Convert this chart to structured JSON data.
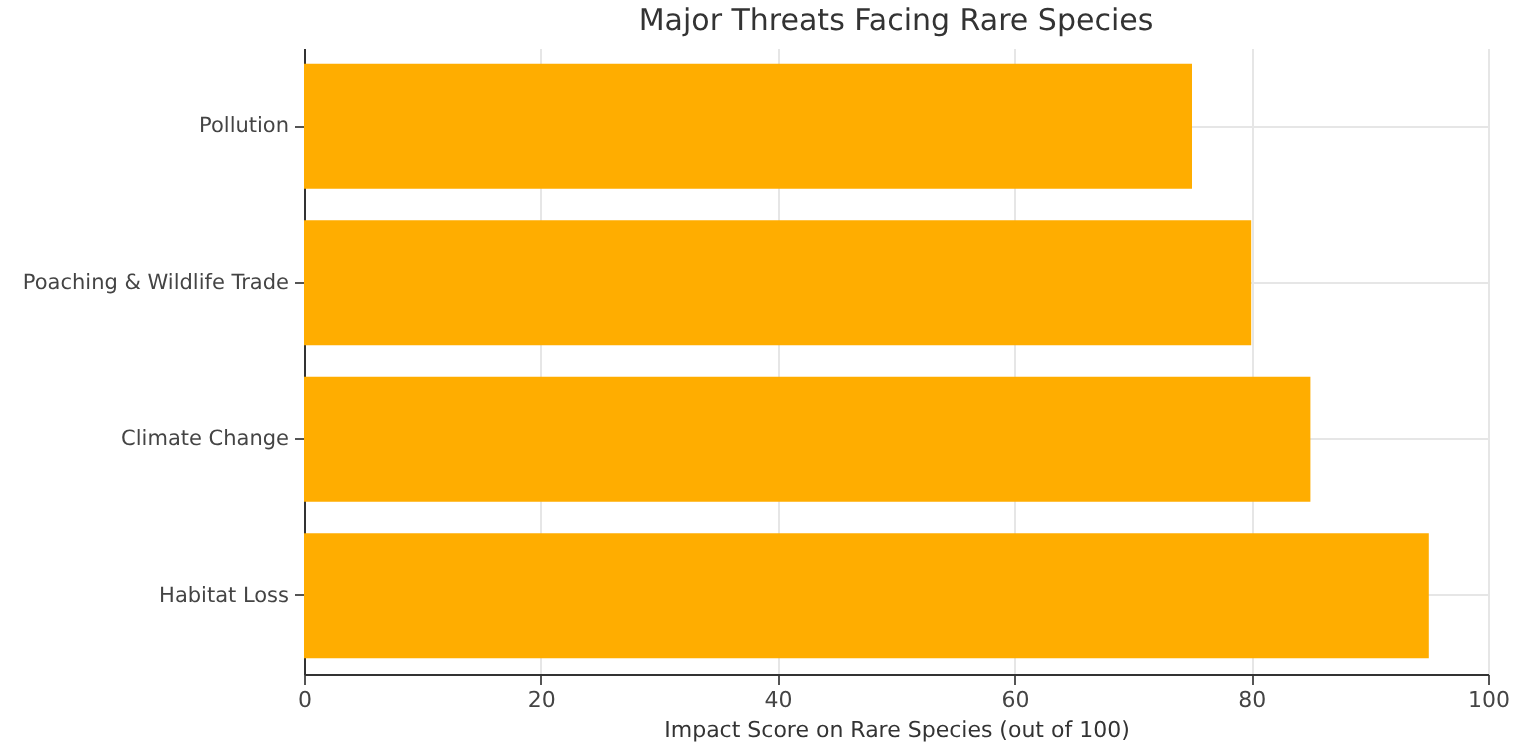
{
  "chart_data": {
    "type": "bar",
    "orientation": "horizontal",
    "title": "Major Threats Facing Rare Species",
    "xlabel": "Impact Score on Rare Species (out of 100)",
    "categories": [
      "Pollution",
      "Poaching & Wildlife Trade",
      "Climate Change",
      "Habitat Loss"
    ],
    "values": [
      75,
      80,
      85,
      95
    ],
    "color": "#ffad00",
    "xlim": [
      0,
      100
    ],
    "xticks": [
      0,
      20,
      40,
      60,
      80,
      100
    ],
    "grid": true
  }
}
